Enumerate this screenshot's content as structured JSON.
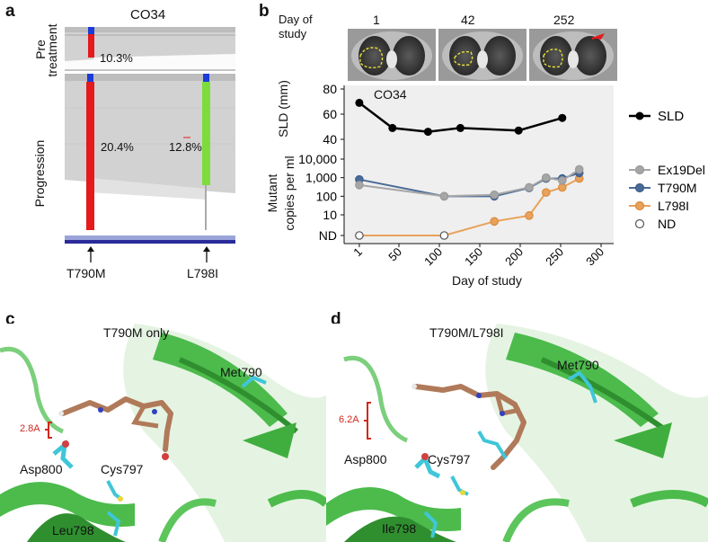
{
  "panels": {
    "a": "a",
    "b": "b",
    "c": "c",
    "d": "d"
  },
  "panel_a": {
    "title": "CO34",
    "row_pre": "Pre\ntreatment",
    "row_pre_l1": "Pre",
    "row_pre_l2": "treatment",
    "row_prog": "Progression",
    "pre_pct": "10.3%",
    "prog_pct_1": "20.4%",
    "prog_pct_2": "12.8%",
    "mut1": "T790M",
    "mut2": "L798I",
    "colors": {
      "red": "#e41a1c",
      "green": "#7ddc3c",
      "blue_cap": "#1c3cd8",
      "read": "#cfcfcf"
    }
  },
  "panel_b": {
    "scan_header_l1": "Day of",
    "scan_header_l2": "study",
    "scan_days": [
      "1",
      "42",
      "252"
    ],
    "top_chart_label": "CO34",
    "ylabel_sld": "SLD (mm)",
    "ylabel_mut_l1": "Mutant",
    "ylabel_mut_l2": "copies per ml",
    "xlabel": "Day of study"
  },
  "chart_data": [
    {
      "type": "line",
      "title": "CO34",
      "xlabel": "",
      "ylabel": "SLD (mm)",
      "ylim": [
        30,
        80
      ],
      "yticks": [
        "80",
        "60",
        "40"
      ],
      "grid": false,
      "legend_position": "right",
      "series": [
        {
          "name": "SLD",
          "color": "#000000",
          "x": [
            1,
            42,
            86,
            126,
            198,
            252
          ],
          "y": [
            69,
            49,
            46,
            49,
            47,
            57
          ]
        }
      ]
    },
    {
      "type": "line",
      "xlabel": "Day of study",
      "ylabel": "Mutant copies per ml",
      "yscale": "log",
      "yticks": [
        "10,000",
        "1,000",
        "100",
        "10",
        "ND"
      ],
      "xticks": [
        "1",
        "50",
        "100",
        "150",
        "200",
        "250",
        "300"
      ],
      "xlim": [
        0,
        300
      ],
      "grid": false,
      "legend_position": "right",
      "series": [
        {
          "name": "Ex19Del",
          "color": "#a6a6a6",
          "x": [
            1,
            106,
            168,
            211,
            232,
            252,
            273
          ],
          "y": [
            400,
            100,
            120,
            300,
            1000,
            700,
            2800
          ]
        },
        {
          "name": "T790M",
          "color": "#4a6b96",
          "x": [
            1,
            106,
            168,
            211,
            232,
            252,
            273
          ],
          "y": [
            800,
            100,
            100,
            280,
            900,
            900,
            1800
          ]
        },
        {
          "name": "L798I",
          "color": "#e8a25a",
          "x": [
            1,
            106,
            168,
            211,
            232,
            252,
            273
          ],
          "y": [
            "ND",
            "ND",
            4,
            9,
            160,
            300,
            900
          ]
        },
        {
          "name": "ND",
          "color": "#ffffff",
          "x": [
            1,
            106
          ],
          "y": [
            "ND",
            "ND"
          ]
        }
      ]
    }
  ],
  "panel_c": {
    "title": "T790M only",
    "dist": "2.8A",
    "res1": "Met790",
    "res2": "Asp800",
    "res3": "Cys797",
    "res4": "Leu798"
  },
  "panel_d": {
    "title": "T790M/L798I",
    "dist": "6.2A",
    "res1": "Met790",
    "res2": "Asp800",
    "res3": "Cys797",
    "res4": "Ile798"
  }
}
